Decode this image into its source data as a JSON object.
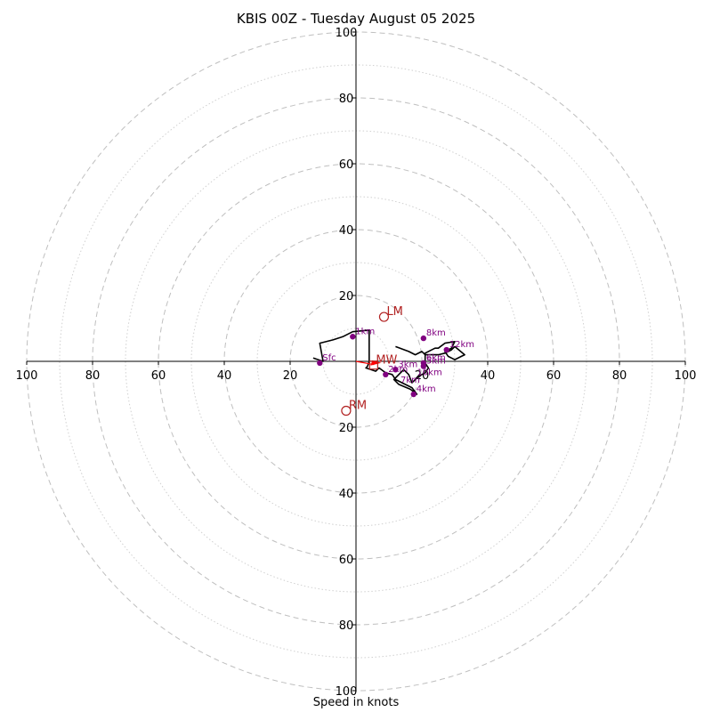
{
  "title": "KBIS 00Z - Tuesday August 05 2025",
  "xlabel": "Speed in knots",
  "chart_data": {
    "type": "hodograph",
    "units": "knots",
    "rings_major": [
      20,
      40,
      60,
      80,
      100
    ],
    "rings_minor": [
      10,
      30,
      50,
      70,
      90
    ],
    "x_ticks": [
      "100",
      "80",
      "60",
      "40",
      "20",
      "",
      "20",
      "40",
      "60",
      "80",
      "100"
    ],
    "y_ticks": [
      "100",
      "80",
      "60",
      "40",
      "20",
      "",
      "20",
      "40",
      "60",
      "80",
      "100"
    ],
    "range": [
      -100,
      100
    ],
    "grid": "dashed rings",
    "trace": [
      [
        -13,
        1
      ],
      [
        -10,
        0
      ],
      [
        -11,
        5.5
      ],
      [
        -7,
        6.5
      ],
      [
        -4,
        7.5
      ],
      [
        -1,
        9
      ],
      [
        4,
        9.5
      ],
      [
        4,
        7
      ],
      [
        4,
        3
      ],
      [
        4,
        0
      ],
      [
        3.5,
        -1.5
      ],
      [
        3,
        -2
      ],
      [
        6,
        -3
      ],
      [
        7,
        -2
      ],
      [
        9,
        -3.5
      ],
      [
        11,
        -4
      ],
      [
        12,
        -5.5
      ],
      [
        14,
        -6.5
      ],
      [
        17,
        -8
      ],
      [
        18.5,
        -10
      ],
      [
        16.5,
        -8.5
      ],
      [
        13,
        -7
      ],
      [
        11.5,
        -5.5
      ],
      [
        13,
        -4
      ],
      [
        14.5,
        -2.5
      ],
      [
        16,
        -4
      ],
      [
        17,
        -6.5
      ],
      [
        18,
        -5.5
      ],
      [
        20,
        -4
      ],
      [
        21,
        -3.5
      ],
      [
        22,
        -2
      ],
      [
        21,
        -0.5
      ],
      [
        21,
        1
      ],
      [
        21,
        2.5
      ],
      [
        24,
        4
      ],
      [
        25,
        4
      ],
      [
        27,
        5.5
      ],
      [
        30,
        6
      ],
      [
        29,
        4
      ],
      [
        27,
        3
      ],
      [
        28,
        1.5
      ],
      [
        30,
        0.5
      ],
      [
        32,
        1.5
      ],
      [
        33,
        2
      ],
      [
        30,
        4.5
      ],
      [
        29,
        3.5
      ],
      [
        27,
        2.5
      ],
      [
        25,
        2
      ],
      [
        21,
        2
      ],
      [
        20,
        3
      ],
      [
        18,
        2
      ],
      [
        16,
        3
      ],
      [
        12,
        4.5
      ]
    ],
    "levels": [
      {
        "label": "Sfc",
        "u": -11,
        "v": -0.5
      },
      {
        "label": "1km",
        "u": -1,
        "v": 7.5
      },
      {
        "label": "2km",
        "u": 9,
        "v": -4
      },
      {
        "label": "3km",
        "u": 12,
        "v": -2.5
      },
      {
        "label": "4km",
        "u": 17.5,
        "v": -10
      },
      {
        "label": "5km",
        "u": 20.5,
        "v": -1.5
      },
      {
        "label": "6km",
        "u": 20.5,
        "v": -0.5
      },
      {
        "label": "8km",
        "u": 20.5,
        "v": 7
      },
      {
        "label": "12km",
        "u": 27.5,
        "v": 3.5
      }
    ],
    "motions": [
      {
        "label": "LM",
        "u": 8.5,
        "v": 13.5
      },
      {
        "label": "RM",
        "u": -3,
        "v": -15
      },
      {
        "label": "MW",
        "u": 5.5,
        "v": -1
      }
    ],
    "extra_labels": [
      "7km",
      "10km"
    ],
    "colors": {
      "trace": "#000000",
      "levels": "#800080",
      "motions": "#b22222",
      "arrow": "#ff0000",
      "grid": "#bfbfbf"
    }
  }
}
